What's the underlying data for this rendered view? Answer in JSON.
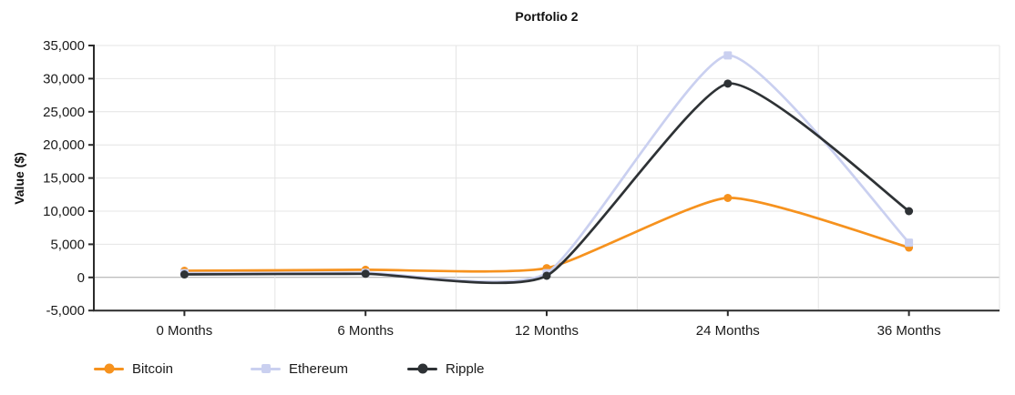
{
  "chart_data": {
    "type": "line",
    "title": "Portfolio 2",
    "ylabel": "Value ($)",
    "xlabel": "",
    "curve": "smooth",
    "grid": "horizontal lines at each y tick; vertical lines at category band edges",
    "legend_position": "bottom-left",
    "categories": [
      "0 Months",
      "6 Months",
      "12 Months",
      "24 Months",
      "36 Months"
    ],
    "series": [
      {
        "name": "Bitcoin",
        "color": "#F6921E",
        "marker": "circle",
        "values": [
          1000,
          1150,
          1400,
          12000,
          4500
        ]
      },
      {
        "name": "Ethereum",
        "color": "#CAD0F0",
        "marker": "square",
        "values": [
          650,
          700,
          650,
          33500,
          5250
        ]
      },
      {
        "name": "Ripple",
        "color": "#2E3235",
        "marker": "circle",
        "values": [
          450,
          550,
          250,
          29250,
          10000
        ]
      }
    ],
    "ylim": [
      -5000,
      35000
    ],
    "y_tick_values": [
      35000,
      30000,
      25000,
      20000,
      15000,
      10000,
      5000,
      0,
      -5000
    ],
    "y_tick_labels": [
      "35,000",
      "30,000",
      "25,000",
      "20,000",
      "15,000",
      "10,000",
      "5,000",
      "0",
      "-5,000"
    ],
    "colors": {
      "background": "#ffffff",
      "axis": "#2b2b2b",
      "grid": "#e4e4e4",
      "zero_line": "#a8a8a8",
      "text": "#1a1a1a",
      "title": "#111111"
    }
  }
}
